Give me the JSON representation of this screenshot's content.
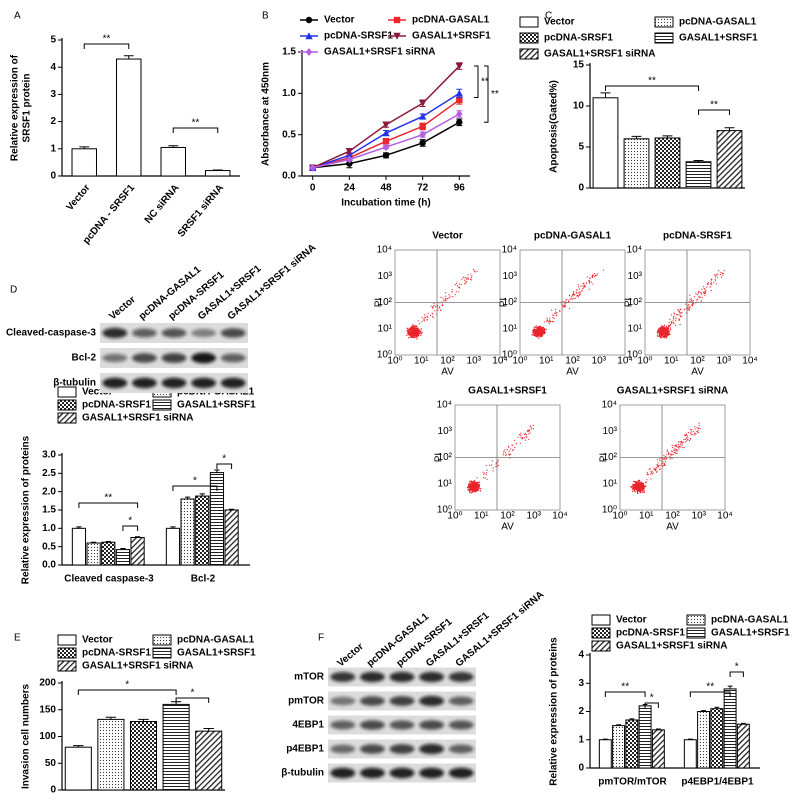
{
  "chart_data": [
    {
      "type": "bar",
      "panel": "A",
      "categories": [
        "Vector",
        "pcDNA - SRSF1",
        "NC siRNA",
        "SRSF1 siRNA"
      ],
      "values": [
        1.0,
        4.3,
        1.05,
        0.2
      ],
      "errors": [
        0.07,
        0.12,
        0.06,
        0.02
      ],
      "fill": "white",
      "ylabel": [
        "Relative expression of",
        "SRSF1 protein"
      ],
      "ylim": [
        0,
        5
      ],
      "yticks": [
        0,
        1,
        2,
        3,
        4,
        5
      ],
      "annotations": [
        "**",
        "**"
      ]
    },
    {
      "type": "line",
      "panel": "B",
      "x": [
        0,
        24,
        48,
        72,
        96
      ],
      "xlim": [
        -7,
        103
      ],
      "xticks": [
        0,
        24,
        48,
        72,
        96
      ],
      "xlabel": "Incubation time (h)",
      "ylabel": [
        "Absorbance at 450nm"
      ],
      "ylim": [
        0,
        1.5
      ],
      "yticks": [
        {
          "value": 0,
          "label": "0.0"
        },
        {
          "value": 0.5,
          "label": "0.5"
        },
        {
          "value": 1,
          "label": "1.0"
        },
        {
          "value": 1.5,
          "label": "1.5"
        }
      ],
      "series": [
        {
          "name": "Vector",
          "color": "#000000",
          "marker": "circle",
          "values": [
            0.1,
            0.15,
            0.25,
            0.4,
            0.65
          ],
          "errors": [
            0.01,
            0.05,
            0.03,
            0.04,
            0.04
          ]
        },
        {
          "name": "pcDNA-GASAL1",
          "color": "#e8262c",
          "marker": "square",
          "values": [
            0.1,
            0.22,
            0.42,
            0.6,
            0.92
          ],
          "errors": [
            0.01,
            0.03,
            0.03,
            0.04,
            0.05
          ]
        },
        {
          "name": "pcDNA-SRSF1",
          "color": "#2433e8",
          "marker": "triangle",
          "values": [
            0.1,
            0.25,
            0.52,
            0.72,
            1.0
          ],
          "errors": [
            0.01,
            0.03,
            0.03,
            0.03,
            0.05
          ]
        },
        {
          "name": "GASAL1+SRSF1",
          "color": "#8b1a3c",
          "marker": "down-triangle",
          "values": [
            0.1,
            0.3,
            0.62,
            0.88,
            1.33
          ],
          "errors": [
            0.01,
            0.03,
            0.03,
            0.04,
            0.04
          ]
        },
        {
          "name": "GASAL1+SRSF1 siRNA",
          "color": "#b45ee0",
          "marker": "diamond",
          "values": [
            0.1,
            0.2,
            0.35,
            0.5,
            0.75
          ],
          "errors": [
            0.01,
            0.02,
            0.02,
            0.03,
            0.04
          ]
        }
      ],
      "annotations": [
        "**",
        "**"
      ]
    },
    {
      "type": "bar",
      "panel": "C",
      "ylabel": [
        "Apoptosis(Gated%)"
      ],
      "ylim": [
        0,
        15
      ],
      "yticks": [
        0,
        5,
        10,
        15
      ],
      "series": [
        {
          "name": "Vector",
          "fill": "white",
          "values": [
            11
          ],
          "errors": [
            0.6
          ]
        },
        {
          "name": "pcDNA-GASAL1",
          "fill": "dots",
          "values": [
            6
          ],
          "errors": [
            0.3
          ]
        },
        {
          "name": "pcDNA-SRSF1",
          "fill": "checker",
          "values": [
            6.1
          ],
          "errors": [
            0.25
          ]
        },
        {
          "name": "GASAL1+SRSF1",
          "fill": "hlines",
          "values": [
            3.2
          ],
          "errors": [
            0.15
          ]
        },
        {
          "name": "GASAL1+SRSF1 siRNA",
          "fill": "diagonal",
          "values": [
            7
          ],
          "errors": [
            0.35
          ]
        }
      ],
      "annotations": [
        "**",
        "**"
      ]
    },
    {
      "type": "bar",
      "panel": "D",
      "categories": [
        "Cleaved caspase-3",
        "Bcl-2"
      ],
      "ylabel": [
        "Relative expression of proteins"
      ],
      "ylim": [
        0,
        3
      ],
      "yticks": [
        {
          "value": 0,
          "label": "0.0"
        },
        {
          "value": 0.5,
          "label": "0.5"
        },
        {
          "value": 1,
          "label": "1.0"
        },
        {
          "value": 1.5,
          "label": "1.5"
        },
        {
          "value": 2,
          "label": "2.0"
        },
        {
          "value": 2.5,
          "label": "2.5"
        },
        {
          "value": 3,
          "label": "3.0"
        }
      ],
      "series": [
        {
          "name": "Vector",
          "fill": "white",
          "values": [
            1.0,
            1.0
          ],
          "errors": [
            0.04,
            0.04
          ]
        },
        {
          "name": "pcDNA-GASAL1",
          "fill": "dots",
          "values": [
            0.6,
            1.8
          ],
          "errors": [
            0.02,
            0.05
          ]
        },
        {
          "name": "pcDNA-SRSF1",
          "fill": "checker",
          "values": [
            0.62,
            1.88
          ],
          "errors": [
            0.02,
            0.06
          ]
        },
        {
          "name": "GASAL1+SRSF1",
          "fill": "hlines",
          "values": [
            0.42,
            2.52
          ],
          "errors": [
            0.03,
            0.07
          ]
        },
        {
          "name": "GASAL1+SRSF1 siRNA",
          "fill": "diagonal",
          "values": [
            0.75,
            1.5
          ],
          "errors": [
            0.02,
            0.02
          ]
        }
      ],
      "annotations": [
        "**",
        "*",
        "*",
        "*"
      ]
    },
    {
      "type": "bar",
      "panel": "E",
      "ylabel": [
        "Invasion cell numbers"
      ],
      "ylim": [
        0,
        200
      ],
      "yticks": [
        0,
        50,
        100,
        150,
        200
      ],
      "series": [
        {
          "name": "Vector",
          "fill": "white",
          "values": [
            80
          ],
          "errors": [
            3
          ]
        },
        {
          "name": "pcDNA-GASAL1",
          "fill": "dots",
          "values": [
            132
          ],
          "errors": [
            4
          ]
        },
        {
          "name": "pcDNA-SRSF1",
          "fill": "checker",
          "values": [
            128
          ],
          "errors": [
            4
          ]
        },
        {
          "name": "GASAL1+SRSF1",
          "fill": "hlines",
          "values": [
            160
          ],
          "errors": [
            5
          ]
        },
        {
          "name": "GASAL1+SRSF1 siRNA",
          "fill": "diagonal",
          "values": [
            110
          ],
          "errors": [
            5
          ]
        }
      ],
      "annotations": [
        "*",
        "*"
      ]
    },
    {
      "type": "bar",
      "panel": "F",
      "categories": [
        "pmTOR/mTOR",
        "p4EBP1/4EBP1"
      ],
      "ylabel": [
        "Relative expression of proteins"
      ],
      "ylim": [
        0,
        4
      ],
      "yticks": [
        0,
        1,
        2,
        3,
        4
      ],
      "series": [
        {
          "name": "Vector",
          "fill": "white",
          "values": [
            1.0,
            1.0
          ],
          "errors": [
            0.02,
            0.02
          ]
        },
        {
          "name": "pcDNA-GASAL1",
          "fill": "dots",
          "values": [
            1.5,
            2.0
          ],
          "errors": [
            0.03,
            0.03
          ]
        },
        {
          "name": "pcDNA-SRSF1",
          "fill": "checker",
          "values": [
            1.7,
            2.1
          ],
          "errors": [
            0.04,
            0.05
          ]
        },
        {
          "name": "GASAL1+SRSF1",
          "fill": "hlines",
          "values": [
            2.2,
            2.8
          ],
          "errors": [
            0.05,
            0.1
          ]
        },
        {
          "name": "GASAL1+SRSF1 siRNA",
          "fill": "diagonal",
          "values": [
            1.35,
            1.55
          ],
          "errors": [
            0.03,
            0.03
          ]
        }
      ],
      "annotations": [
        "**",
        "*",
        "**",
        "*"
      ]
    }
  ],
  "blots": [
    {
      "panel": "D",
      "lanes": [
        "Vector",
        "pcDNA-GASAL1",
        "pcDNA-SRSF1",
        "GASAL1+SRSF1",
        "GASAL1+SRSF1 siRNA"
      ],
      "rows": [
        "Cleaved-caspase-3",
        "Bcl-2",
        "β-tubulin"
      ]
    },
    {
      "panel": "F",
      "lanes": [
        "Vector",
        "pcDNA-GASAL1",
        "pcDNA-SRSF1",
        "GASAL1+SRSF1",
        "GASAL1+SRSF1 siRNA"
      ],
      "rows": [
        "mTOR",
        "pmTOR",
        "4EBP1",
        "p4EBP1",
        "β-tubulin"
      ]
    }
  ],
  "flow": {
    "titles": [
      "Vector",
      "pcDNA-GASAL1",
      "pcDNA-SRSF1",
      "GASAL1+SRSF1",
      "GASAL1+SRSF1 siRNA"
    ],
    "xlabel": "AV",
    "ylabel": "PI",
    "ticks": [
      "10⁰",
      "10¹",
      "10²",
      "10³",
      "10⁴"
    ]
  }
}
